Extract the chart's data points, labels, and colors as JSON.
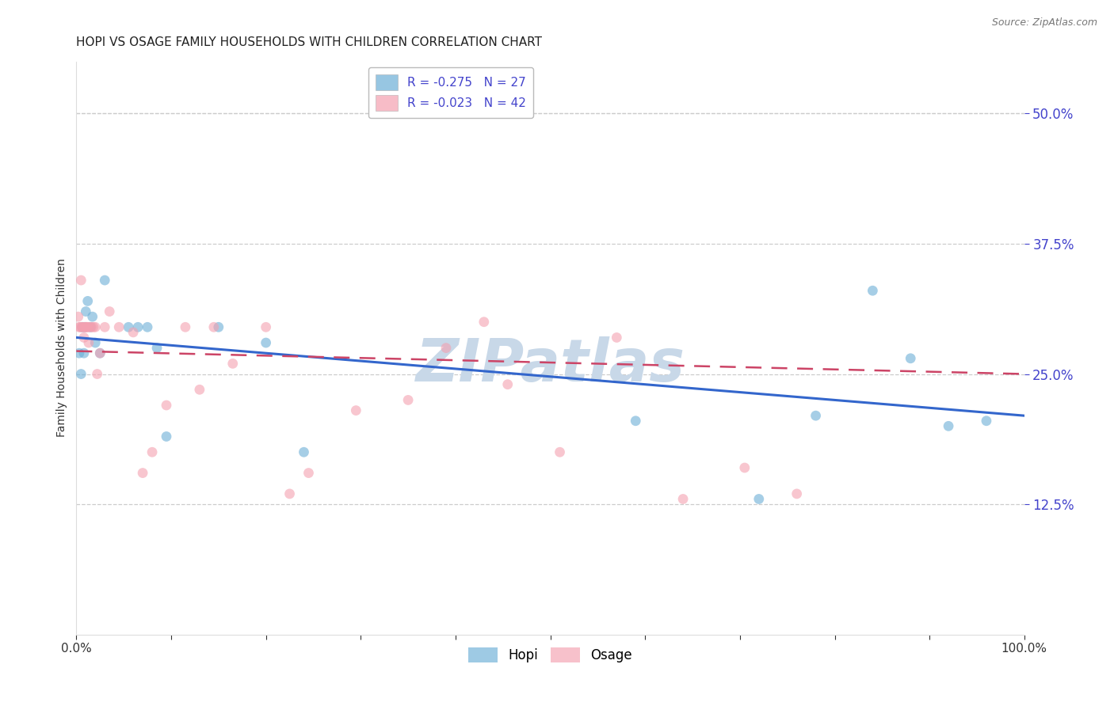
{
  "title": "HOPI VS OSAGE FAMILY HOUSEHOLDS WITH CHILDREN CORRELATION CHART",
  "source": "Source: ZipAtlas.com",
  "ylabel": "Family Households with Children",
  "xlim": [
    0,
    1.0
  ],
  "ylim": [
    0,
    0.55
  ],
  "yticks": [
    0.125,
    0.25,
    0.375,
    0.5
  ],
  "ytick_labels": [
    "12.5%",
    "25.0%",
    "37.5%",
    "50.0%"
  ],
  "xticks": [
    0.0,
    0.1,
    0.2,
    0.3,
    0.4,
    0.5,
    0.6,
    0.7,
    0.8,
    0.9,
    1.0
  ],
  "xtick_labels": [
    "0.0%",
    "",
    "",
    "",
    "",
    "",
    "",
    "",
    "",
    "",
    "100.0%"
  ],
  "hopi_color": "#6baed6",
  "osage_color": "#f4a0b0",
  "hopi_R": -0.275,
  "hopi_N": 27,
  "osage_R": -0.023,
  "osage_N": 42,
  "hopi_x": [
    0.003,
    0.005,
    0.006,
    0.008,
    0.009,
    0.01,
    0.012,
    0.015,
    0.017,
    0.02,
    0.025,
    0.03,
    0.055,
    0.065,
    0.075,
    0.085,
    0.095,
    0.15,
    0.2,
    0.24,
    0.59,
    0.72,
    0.78,
    0.84,
    0.88,
    0.92,
    0.96
  ],
  "hopi_y": [
    0.27,
    0.25,
    0.295,
    0.27,
    0.295,
    0.31,
    0.32,
    0.295,
    0.305,
    0.28,
    0.27,
    0.34,
    0.295,
    0.295,
    0.295,
    0.275,
    0.19,
    0.295,
    0.28,
    0.175,
    0.205,
    0.13,
    0.21,
    0.33,
    0.265,
    0.2,
    0.205
  ],
  "osage_x": [
    0.002,
    0.003,
    0.004,
    0.005,
    0.006,
    0.007,
    0.008,
    0.009,
    0.01,
    0.011,
    0.012,
    0.013,
    0.014,
    0.016,
    0.018,
    0.02,
    0.022,
    0.025,
    0.03,
    0.035,
    0.045,
    0.06,
    0.07,
    0.08,
    0.095,
    0.115,
    0.13,
    0.145,
    0.165,
    0.2,
    0.225,
    0.245,
    0.295,
    0.35,
    0.39,
    0.43,
    0.455,
    0.51,
    0.57,
    0.64,
    0.705,
    0.76
  ],
  "osage_y": [
    0.305,
    0.295,
    0.295,
    0.34,
    0.295,
    0.295,
    0.285,
    0.295,
    0.295,
    0.295,
    0.295,
    0.28,
    0.295,
    0.295,
    0.295,
    0.295,
    0.25,
    0.27,
    0.295,
    0.31,
    0.295,
    0.29,
    0.155,
    0.175,
    0.22,
    0.295,
    0.235,
    0.295,
    0.26,
    0.295,
    0.135,
    0.155,
    0.215,
    0.225,
    0.275,
    0.3,
    0.24,
    0.175,
    0.285,
    0.13,
    0.16,
    0.135
  ],
  "background_color": "#ffffff",
  "grid_color": "#cccccc",
  "tick_color": "#4444cc",
  "title_fontsize": 11,
  "axis_label_fontsize": 10,
  "legend_fontsize": 11,
  "marker_size": 85,
  "hopi_line_color": "#3366cc",
  "osage_line_color": "#cc4466",
  "hopi_line_start_y": 0.285,
  "hopi_line_end_y": 0.21,
  "osage_line_start_y": 0.272,
  "osage_line_end_y": 0.25,
  "watermark": "ZIPatlas",
  "watermark_color": "#c8d8e8"
}
